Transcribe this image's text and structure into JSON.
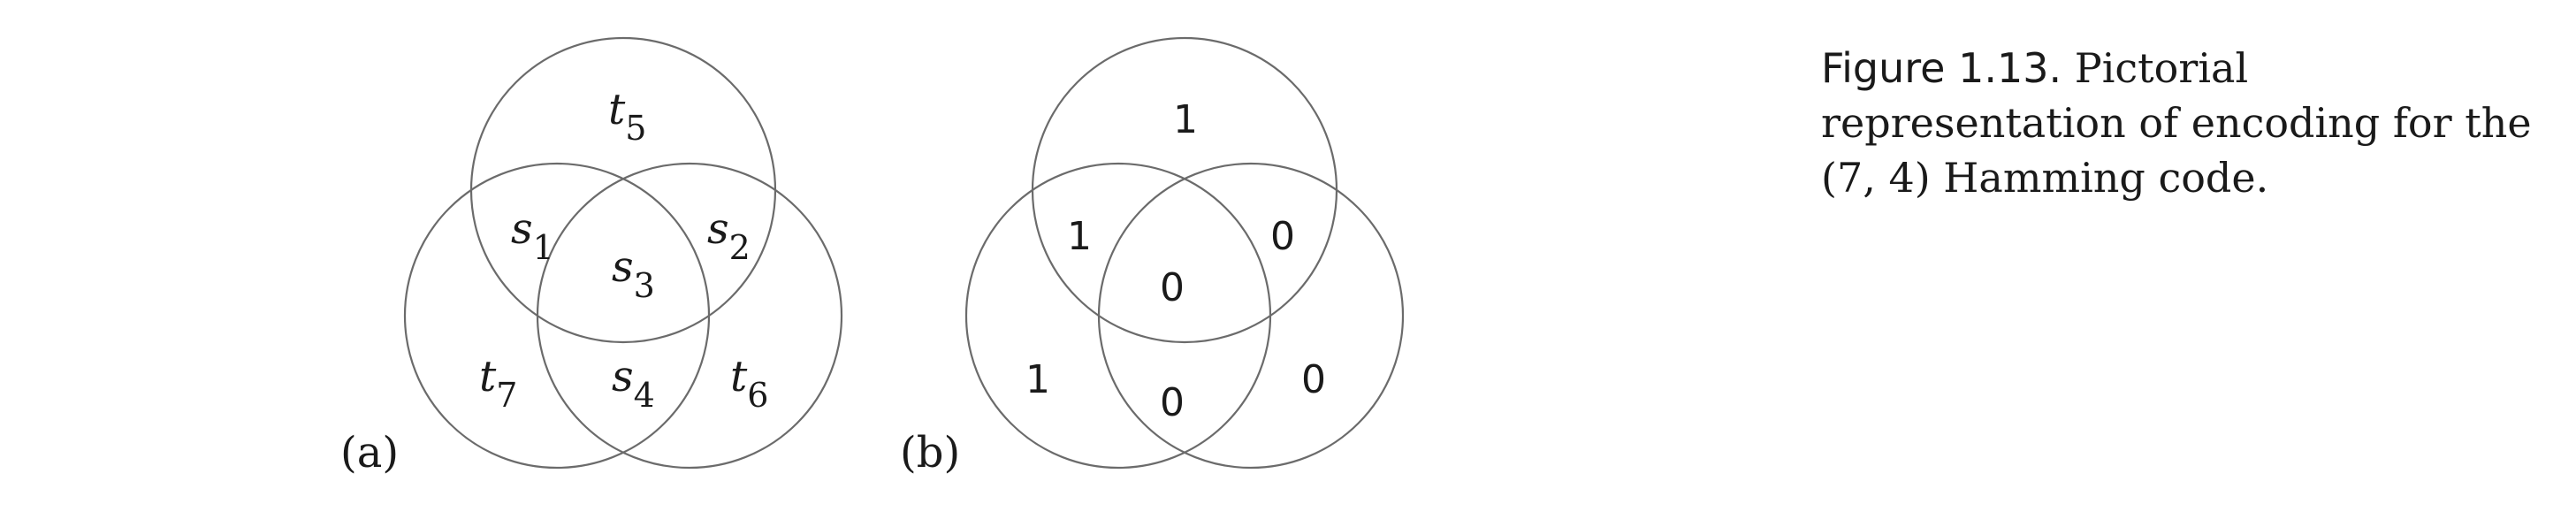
{
  "panel_a": {
    "label": "(a)",
    "regions": {
      "top": {
        "base": "t",
        "sub": "5"
      },
      "top_left": {
        "base": "s",
        "sub": "1"
      },
      "top_right": {
        "base": "s",
        "sub": "2"
      },
      "center": {
        "base": "s",
        "sub": "3"
      },
      "bottom_center": {
        "base": "s",
        "sub": "4"
      },
      "bottom_left": {
        "base": "t",
        "sub": "7"
      },
      "bottom_right": {
        "base": "t",
        "sub": "6"
      }
    }
  },
  "panel_b": {
    "label": "(b)",
    "regions": {
      "top": "1",
      "top_left": "1",
      "top_right": "0",
      "center": "0",
      "bottom_center": "0",
      "bottom_left": "1",
      "bottom_right": "0"
    }
  },
  "caption": {
    "label": "Figure 1.13.",
    "line1": "Pictorial",
    "line2": "representation of encoding for the",
    "line3": "(7, 4) Hamming code."
  }
}
